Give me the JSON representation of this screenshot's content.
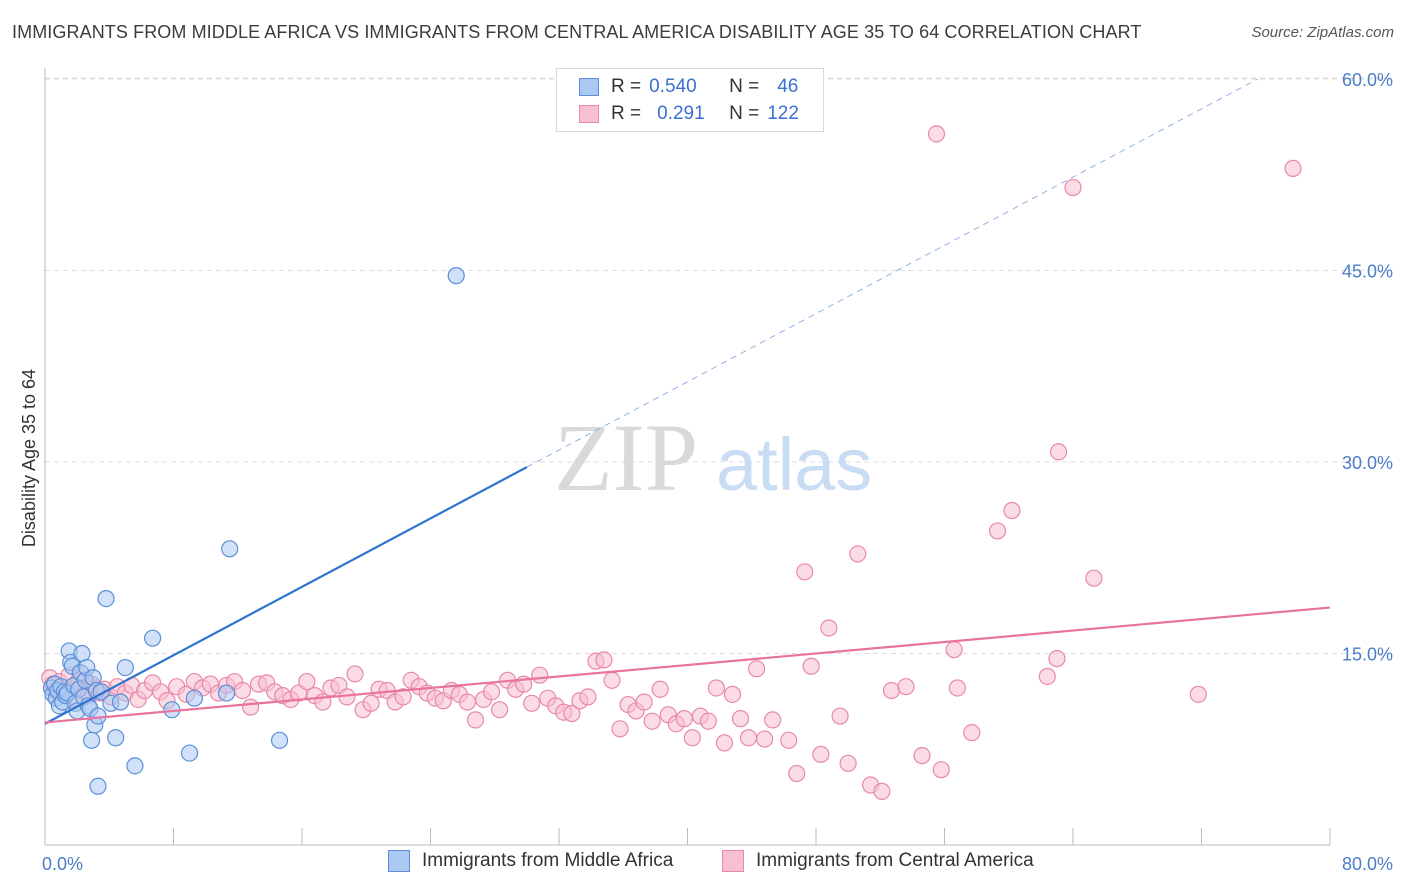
{
  "header": {
    "title": "IMMIGRANTS FROM MIDDLE AFRICA VS IMMIGRANTS FROM CENTRAL AMERICA DISABILITY AGE 35 TO 64 CORRELATION CHART",
    "source": "Source: ZipAtlas.com"
  },
  "legend": {
    "blue": {
      "r_label": "R =",
      "r_value": "0.540",
      "n_label": "N =",
      "n_value": "46"
    },
    "pink": {
      "r_label": "R =",
      "r_value": "0.291",
      "n_label": "N =",
      "n_value": "122"
    }
  },
  "watermark": {
    "zip": "ZIP",
    "atlas": "atlas"
  },
  "colors": {
    "blue_fill": "#a9c8f2",
    "blue_stroke": "#5d8fd8",
    "blue_line": "#2f74d0",
    "pink_fill": "#f7bfd0",
    "pink_stroke": "#e889a8",
    "pink_line": "#e8739b",
    "tick_text": "#4a7cc9",
    "grid": "#dddddd"
  },
  "chart_data": {
    "type": "scatter",
    "title": "IMMIGRANTS FROM MIDDLE AFRICA VS IMMIGRANTS FROM CENTRAL AMERICA DISABILITY AGE 35 TO 64 CORRELATION CHART",
    "xlabel": "",
    "ylabel": "Disability Age 35 to 64",
    "xlim": [
      0,
      80
    ],
    "ylim": [
      0,
      60
    ],
    "x_tick_labels": [
      "0.0%",
      "80.0%"
    ],
    "y_tick_labels": [
      "15.0%",
      "30.0%",
      "45.0%",
      "60.0%"
    ],
    "y_ticks": [
      15,
      30,
      45,
      60
    ],
    "grid": true,
    "legend_position": "top-center",
    "series": [
      {
        "name": "Immigrants from Middle Africa",
        "color": "#a9c8f2",
        "points": [
          [
            0.4,
            12.3
          ],
          [
            0.5,
            11.8
          ],
          [
            0.6,
            12.6
          ],
          [
            0.7,
            11.5
          ],
          [
            0.8,
            12.1
          ],
          [
            0.9,
            10.9
          ],
          [
            1.0,
            12.4
          ],
          [
            1.1,
            11.2
          ],
          [
            1.2,
            12.0
          ],
          [
            1.3,
            11.7
          ],
          [
            1.4,
            11.9
          ],
          [
            1.5,
            15.2
          ],
          [
            1.6,
            14.3
          ],
          [
            1.7,
            14.0
          ],
          [
            1.8,
            12.5
          ],
          [
            1.9,
            11.1
          ],
          [
            2.0,
            10.5
          ],
          [
            2.1,
            12.2
          ],
          [
            2.2,
            13.5
          ],
          [
            2.3,
            15.0
          ],
          [
            2.4,
            11.6
          ],
          [
            2.5,
            12.9
          ],
          [
            2.6,
            13.9
          ],
          [
            2.7,
            10.9
          ],
          [
            2.8,
            10.7
          ],
          [
            2.9,
            8.2
          ],
          [
            3.0,
            13.1
          ],
          [
            3.1,
            9.4
          ],
          [
            3.2,
            12.1
          ],
          [
            3.3,
            10.1
          ],
          [
            3.5,
            12.0
          ],
          [
            3.8,
            19.3
          ],
          [
            4.1,
            11.1
          ],
          [
            4.4,
            8.4
          ],
          [
            4.7,
            11.2
          ],
          [
            5.0,
            13.9
          ],
          [
            5.6,
            6.2
          ],
          [
            6.7,
            16.2
          ],
          [
            7.9,
            10.6
          ],
          [
            9.0,
            7.2
          ],
          [
            9.3,
            11.5
          ],
          [
            11.3,
            11.9
          ],
          [
            11.5,
            23.2
          ],
          [
            14.6,
            8.2
          ],
          [
            25.6,
            44.6
          ],
          [
            3.3,
            4.6
          ]
        ]
      },
      {
        "name": "Immigrants from Central America",
        "color": "#f7bfd0",
        "points": [
          [
            0.3,
            13.1
          ],
          [
            0.5,
            12.6
          ],
          [
            0.7,
            12.0
          ],
          [
            0.9,
            12.8
          ],
          [
            1.1,
            12.2
          ],
          [
            1.3,
            11.8
          ],
          [
            1.5,
            13.3
          ],
          [
            1.7,
            12.4
          ],
          [
            1.9,
            11.5
          ],
          [
            2.1,
            12.9
          ],
          [
            2.3,
            13.4
          ],
          [
            2.5,
            12.1
          ],
          [
            2.7,
            11.7
          ],
          [
            2.9,
            12.6
          ],
          [
            3.1,
            12.3
          ],
          [
            3.4,
            11.9
          ],
          [
            3.7,
            12.2
          ],
          [
            4.1,
            11.6
          ],
          [
            4.5,
            12.4
          ],
          [
            5.0,
            11.9
          ],
          [
            5.4,
            12.5
          ],
          [
            5.8,
            11.4
          ],
          [
            6.2,
            12.1
          ],
          [
            6.7,
            12.7
          ],
          [
            7.2,
            12.0
          ],
          [
            7.6,
            11.3
          ],
          [
            8.2,
            12.4
          ],
          [
            8.8,
            11.8
          ],
          [
            9.3,
            12.8
          ],
          [
            9.8,
            12.3
          ],
          [
            10.3,
            12.6
          ],
          [
            10.8,
            11.9
          ],
          [
            11.3,
            12.5
          ],
          [
            11.8,
            12.8
          ],
          [
            12.3,
            12.1
          ],
          [
            12.8,
            10.8
          ],
          [
            13.3,
            12.6
          ],
          [
            13.8,
            12.7
          ],
          [
            14.3,
            12.0
          ],
          [
            14.8,
            11.7
          ],
          [
            15.3,
            11.4
          ],
          [
            15.8,
            11.9
          ],
          [
            16.3,
            12.8
          ],
          [
            16.8,
            11.7
          ],
          [
            17.3,
            11.2
          ],
          [
            17.8,
            12.3
          ],
          [
            18.3,
            12.5
          ],
          [
            18.8,
            11.6
          ],
          [
            19.3,
            13.4
          ],
          [
            19.8,
            10.6
          ],
          [
            20.3,
            11.1
          ],
          [
            20.8,
            12.2
          ],
          [
            21.3,
            12.1
          ],
          [
            21.8,
            11.2
          ],
          [
            22.3,
            11.6
          ],
          [
            22.8,
            12.9
          ],
          [
            23.3,
            12.4
          ],
          [
            23.8,
            11.9
          ],
          [
            24.3,
            11.5
          ],
          [
            24.8,
            11.3
          ],
          [
            25.3,
            12.1
          ],
          [
            25.8,
            11.8
          ],
          [
            26.3,
            11.2
          ],
          [
            26.8,
            9.8
          ],
          [
            27.3,
            11.4
          ],
          [
            27.8,
            12.0
          ],
          [
            28.3,
            10.6
          ],
          [
            28.8,
            12.9
          ],
          [
            29.3,
            12.2
          ],
          [
            29.8,
            12.6
          ],
          [
            30.3,
            11.1
          ],
          [
            30.8,
            13.3
          ],
          [
            31.3,
            11.5
          ],
          [
            31.8,
            10.9
          ],
          [
            32.3,
            10.4
          ],
          [
            32.8,
            10.3
          ],
          [
            33.3,
            11.3
          ],
          [
            33.8,
            11.6
          ],
          [
            34.3,
            14.4
          ],
          [
            34.8,
            14.5
          ],
          [
            35.3,
            12.9
          ],
          [
            35.8,
            9.1
          ],
          [
            36.3,
            11.0
          ],
          [
            36.8,
            10.5
          ],
          [
            37.3,
            11.2
          ],
          [
            37.8,
            9.7
          ],
          [
            38.3,
            12.2
          ],
          [
            38.8,
            10.2
          ],
          [
            39.3,
            9.5
          ],
          [
            39.8,
            9.9
          ],
          [
            40.3,
            8.4
          ],
          [
            40.8,
            10.1
          ],
          [
            41.3,
            9.7
          ],
          [
            41.8,
            12.3
          ],
          [
            42.3,
            8.0
          ],
          [
            42.8,
            11.8
          ],
          [
            43.3,
            9.9
          ],
          [
            43.8,
            8.4
          ],
          [
            44.3,
            13.8
          ],
          [
            44.8,
            8.3
          ],
          [
            45.3,
            9.8
          ],
          [
            46.3,
            8.2
          ],
          [
            46.8,
            5.6
          ],
          [
            47.3,
            21.4
          ],
          [
            47.7,
            14.0
          ],
          [
            48.3,
            7.1
          ],
          [
            48.8,
            17.0
          ],
          [
            49.5,
            10.1
          ],
          [
            50.0,
            6.4
          ],
          [
            50.6,
            22.8
          ],
          [
            51.4,
            4.7
          ],
          [
            52.1,
            4.2
          ],
          [
            52.7,
            12.1
          ],
          [
            53.6,
            12.4
          ],
          [
            54.6,
            7.0
          ],
          [
            55.8,
            5.9
          ],
          [
            56.6,
            15.3
          ],
          [
            56.8,
            12.3
          ],
          [
            57.7,
            8.8
          ],
          [
            59.3,
            24.6
          ],
          [
            60.2,
            26.2
          ],
          [
            62.4,
            13.2
          ],
          [
            63.0,
            14.6
          ],
          [
            63.1,
            30.8
          ],
          [
            64.0,
            51.5
          ],
          [
            65.3,
            20.9
          ],
          [
            71.8,
            11.8
          ],
          [
            55.5,
            55.7
          ],
          [
            77.7,
            53.0
          ]
        ]
      }
    ],
    "trend_lines": [
      {
        "series": "Immigrants from Middle Africa",
        "x": [
          0,
          30
        ],
        "y": [
          9.5,
          29.6
        ],
        "extended_to": [
          75.5,
          60
        ]
      },
      {
        "series": "Immigrants from Central America",
        "x": [
          0,
          80
        ],
        "y": [
          9.6,
          18.6
        ]
      }
    ]
  },
  "bottom_legend": {
    "blue_label": "Immigrants from Middle Africa",
    "pink_label": "Immigrants from Central America"
  }
}
